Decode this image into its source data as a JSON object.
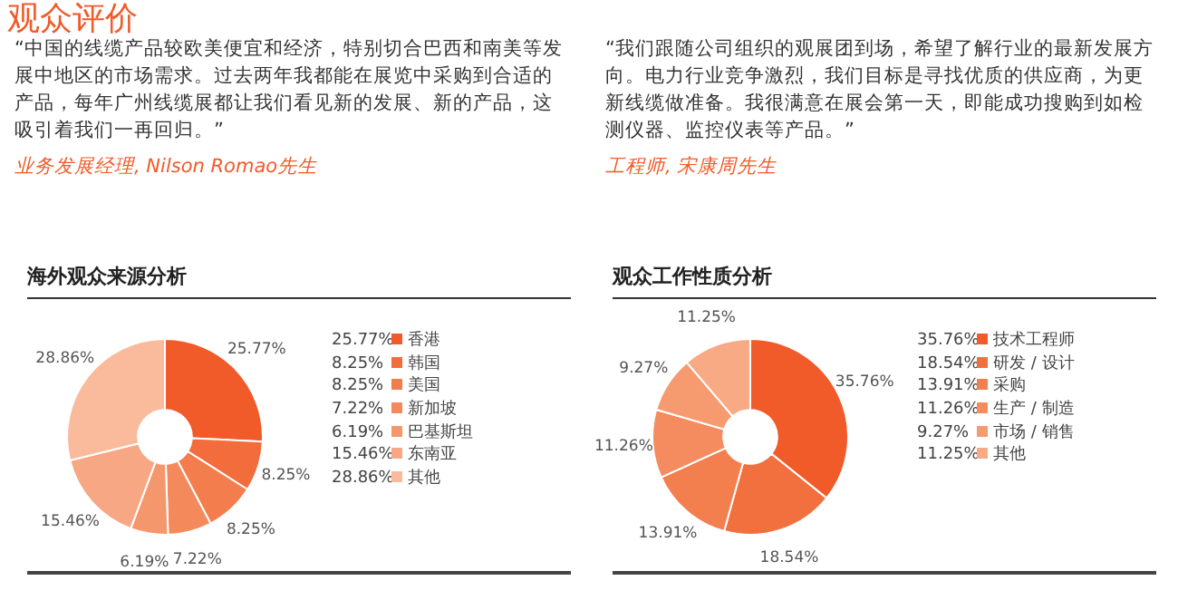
{
  "chart_data": [
    {
      "type": "other",
      "title": "观众评价",
      "annotations": [
        "“中国的线缆产品较欧美便宜和经济，特别切合巴西和南美等发展中地区的市场需求。过去两年我都能在展览中采购到合适的产品，每年广州线缆展都让我们看见新的发展、新的产品，这吸引着我们一再回归。”",
        "业务发展经理, Nilson Romao先生",
        "“我们跟随公司组织的观展团到场，希望了解行业的最新发展方向。电力行业竞争激烈，我们目标是寻找优质的供应商，为更新线缆做准备。我很满意在展会第一天，即能成功搜购到如检测仪器、监控仪表等产品。”",
        "工程师, 宋康周先生"
      ]
    },
    {
      "type": "donut",
      "title": "海外观众来源分析",
      "legend": "right",
      "categories": [
        "香港",
        "韩国",
        "美国",
        "新加坡",
        "巴基斯坦",
        "东南亚",
        "其他"
      ],
      "values": [
        25.77,
        8.25,
        8.25,
        7.22,
        6.19,
        15.46,
        28.86
      ],
      "value_labels": [
        "25.77%",
        "8.25%",
        "8.25%",
        "7.22%",
        "6.19%",
        "15.46%",
        "28.86%"
      ],
      "colors": [
        "#f15a29",
        "#f26c3c",
        "#f37d4c",
        "#f4895c",
        "#f5976c",
        "#f7a784",
        "#f9bb9b"
      ]
    },
    {
      "type": "donut",
      "title": "观众工作性质分析",
      "legend": "right",
      "categories": [
        "技术工程师",
        "研发 / 设计",
        "采购",
        "生产 / 制造",
        "市场 / 销售",
        "其他"
      ],
      "values": [
        35.76,
        18.54,
        13.91,
        11.26,
        9.27,
        11.25
      ],
      "value_labels": [
        "35.76%",
        "18.54%",
        "13.91%",
        "11.26%",
        "9.27%",
        "11.25%"
      ],
      "colors": [
        "#f15a29",
        "#f26f3e",
        "#f37f4f",
        "#f58c5f",
        "#f69a70",
        "#f8aa84"
      ]
    }
  ]
}
